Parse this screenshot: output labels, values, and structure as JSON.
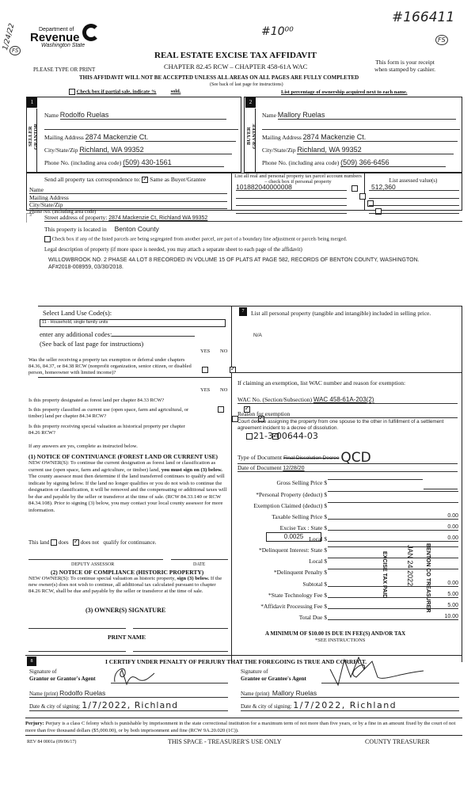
{
  "annotations": {
    "date_note": "1/24/22",
    "initials": "FS",
    "fee_note": "#10⁰⁰",
    "receipt_no": "#166411",
    "receipt_initials": "FS"
  },
  "logo": {
    "dept": "Department of",
    "name": "Revenue",
    "state": "Washington State"
  },
  "header": {
    "title": "REAL ESTATE EXCISE TAX AFFIDAVIT",
    "chapter": "CHAPTER 82.45 RCW – CHAPTER 458-61A WAC",
    "type_or_print": "PLEASE TYPE OR PRINT",
    "receipt_note": [
      "This form is your receipt",
      "when stamped by cashier."
    ],
    "warning": "THIS AFFIDAVIT WILL NOT BE ACCEPTED UNLESS ALL AREAS ON ALL PAGES ARE FULLY COMPLETED",
    "see_back": "(See back of last page for instructions)",
    "partial_sale": "Check box if partial sale, indicate %",
    "sold": "sold.",
    "ownership_note": "List percentage of ownership acquired next to each name."
  },
  "seller": {
    "num": "1",
    "side": "SELLER GRANTOR",
    "name_label": "Name",
    "name": "Rodolfo Ruelas",
    "addr_label": "Mailing Address",
    "addr": "2874 Mackenzie Ct.",
    "city_label": "City/State/Zip",
    "city": "Richland, WA 99352",
    "phone_label": "Phone No. (including area code)",
    "phone": "(509) 430-1561"
  },
  "buyer": {
    "num": "2",
    "side": "BUYER GRANTEE",
    "name_label": "Name",
    "name": "Mallory Ruelas",
    "addr_label": "Mailing Address",
    "addr": "2874 Mackenzie Ct.",
    "city_label": "City/State/Zip",
    "city": "Richland, WA 99352",
    "phone_label": "Phone No. (including area code)",
    "phone": "(509) 366-6456"
  },
  "correspondence": {
    "label": "Send all property tax correspondence to:",
    "same_label": "Same as Buyer/Grantee",
    "same_checked": true,
    "name_label": "Name",
    "addr_label": "Mailing Address",
    "city_label": "City/State/Zip",
    "phone_label": "Phone No. (including area code)"
  },
  "parcels": {
    "header": "List all real and personal property tax parcel account numbers – check box if personal property",
    "value_header": "List assessed value(s)",
    "rows": [
      {
        "number": "101882040000008",
        "value": "512,360"
      },
      {
        "number": "",
        "value": ""
      },
      {
        "number": "",
        "value": ""
      },
      {
        "number": "",
        "value": ""
      }
    ]
  },
  "property": {
    "num": "3",
    "street_label": "Street address of property:",
    "street": "2874 Mackenzie Ct, Richland WA 99352",
    "located_label": "This property is located in",
    "county": "Benton County",
    "segregated_label": "Check box if any of the listed parcels are being segregated from another parcel, are part of a boundary line adjustment or parcels being merged.",
    "legal_label": "Legal description of property (if more space is needed, you may attach a separate sheet to each page of the affidavit)",
    "legal": "WILLOWBROOK NO. 2 PHASE 4A LOT 8 RECORDED IN VOLUME 15 OF PLATS AT PAGE 582, RECORDS OF BENTON COUNTY, WASHINGTON. AF#2018-008959, 03/30/2018."
  },
  "land_use": {
    "label": "Select Land Use Code(s):",
    "code": "11 - Household, single family units",
    "additional": "enter any additional codes:",
    "see_back": "(See back of last page for instructions)",
    "yes": "YES",
    "no": "NO",
    "exemption_q": "Was the seller receiving a property tax exemption or deferral under chapters 84.36, 84.37, or 84.38 RCW (nonprofit organization, senior citizen, or disabled person, homeowner with limited income)?"
  },
  "designation": {
    "yes": "YES",
    "no": "NO",
    "questions": [
      "Is this property designated as forest land per chapter 84.33 RCW?",
      "Is this property classified as current use (open space, farm and agricultural, or timber) land per chapter 84.34 RCW?",
      "Is this property receiving special valuation as historical property per chapter 84.26 RCW?"
    ],
    "if_yes": "If any answers are yes, complete as instructed below.",
    "notice1_title": "(1) NOTICE OF CONTINUANCE (FOREST LAND OR CURRENT USE)",
    "notice1_a": "NEW OWNER(S): To continue the current designation as forest land or classification as current use (open space, farm and agriculture, or timber) land,",
    "notice1_bold": "you must sign on (3) below.",
    "notice1_b": "The county assessor must then determine if the land transferred continues to qualify and will indicate by signing below. If the land no longer qualifies or you do not wish to continue the designation or classification, it will be removed and the compensating or additional taxes will be due and payable by the seller or transferor at the time of sale. (RCW 84.33.140 or RCW 84.34.108). Prior to signing (3) below, you may contact your local county assessor for more information.",
    "this_land": "This land",
    "does": "does",
    "does_not": "does not",
    "qualify": "qualify for continuance.",
    "deputy": "DEPUTY ASSESSOR",
    "date": "DATE",
    "notice2_title": "(2) NOTICE OF COMPLIANCE (HISTORIC PROPERTY)",
    "notice2_a": "NEW OWNER(S): To continue special valuation as historic property,",
    "notice2_bold": "sign (3) below.",
    "notice2_b": "If the new owner(s) does not wish to continue, all additional tax calculated pursuant to chapter 84.26 RCW, shall be due and payable by the seller or transferor at the time of sale.",
    "owner_sig": "(3) OWNER(S) SIGNATURE",
    "print_name": "PRINT NAME"
  },
  "personal_property": {
    "num": "7",
    "label": "List all personal property (tangible and intangible) included in selling price.",
    "value": "N/A"
  },
  "exemption": {
    "label": "If claiming an exemption, list WAC number and reason for exemption:",
    "wac_label": "WAC No. (Section/Subsection)",
    "wac": "WAC 458-61A-203(2)",
    "reason_label": "Reason for exemption",
    "reason": "Court decree assigning the property from one spouse to the other in fulfillment of a settlement agreement incident to a decree of dissolution.",
    "case_no": "21-3-00644-03",
    "doc_type_label": "Type of Document",
    "doc_type_struck": "Final Dissolution Decree",
    "doc_type": "QCD",
    "doc_date_label": "Date of Document",
    "doc_date": "12/28/20"
  },
  "tax": {
    "rate": "0.0025",
    "rows": [
      {
        "label": "Gross Selling Price $",
        "value": ""
      },
      {
        "label": "*Personal Property (deduct) $",
        "value": ""
      },
      {
        "label": "Exemption Claimed (deduct) $",
        "value": ""
      },
      {
        "label": "Taxable Selling Price $",
        "value": "0.00"
      },
      {
        "label": "Excise Tax : State $",
        "value": "0.00"
      },
      {
        "label": "Local $",
        "value": "0.00"
      },
      {
        "label": "*Delinquent Interest: State $",
        "value": ""
      },
      {
        "label": "Local $",
        "value": ""
      },
      {
        "label": "*Delinquent Penalty $",
        "value": ""
      },
      {
        "label": "Subtotal $",
        "value": "0.00"
      },
      {
        "label": "*State Technology Fee $",
        "value": "5.00"
      },
      {
        "label": "*Affidavit Processing Fee $",
        "value": "5.00"
      },
      {
        "label": "Total Due $",
        "value": "10.00"
      }
    ],
    "minimum": "A MINIMUM OF $10.00 IS DUE IN FEE(S) AND/OR TAX",
    "see_instr": "*SEE INSTRUCTIONS"
  },
  "stamp": {
    "line1": "EXCISE TAX PAID",
    "line2": "JAN 24 2022",
    "line3": "BENTON CO TREASURER"
  },
  "certify": {
    "num": "8",
    "title": "I CERTIFY UNDER PENALTY OF PERJURY THAT THE FOREGOING IS TRUE AND CORRECT.",
    "grantor_sig_label1": "Signature of",
    "grantor_sig_label2": "Grantor or Grantor's Agent",
    "grantee_sig_label1": "Signature of",
    "grantee_sig_label2": "Grantee or Grantee's Agent",
    "name_label": "Name (print)",
    "grantor_name": "Rodolfo Ruelas",
    "grantee_name": "Mallory Ruelas",
    "date_label": "Date & city of signing:",
    "grantor_date": "1/7/2022, Richland",
    "grantee_date": "1/7/2022, Richland"
  },
  "perjury": {
    "bold": "Perjury:",
    "text": "Perjury is a class C felony which is punishable by imprisonment in the state correctional institution for a maximum term of not more than five years, or by a fine in an amount fixed by the court of not more than five thousand dollars ($5,000.00), or by both imprisonment and fine (RCW 9A.20.020 (1C))."
  },
  "footer": {
    "form_no": "REV 84 0001a (09/06/17)",
    "treasurer_space": "THIS SPACE - TREASURER'S USE ONLY",
    "county_treasurer": "COUNTY TREASURER"
  }
}
